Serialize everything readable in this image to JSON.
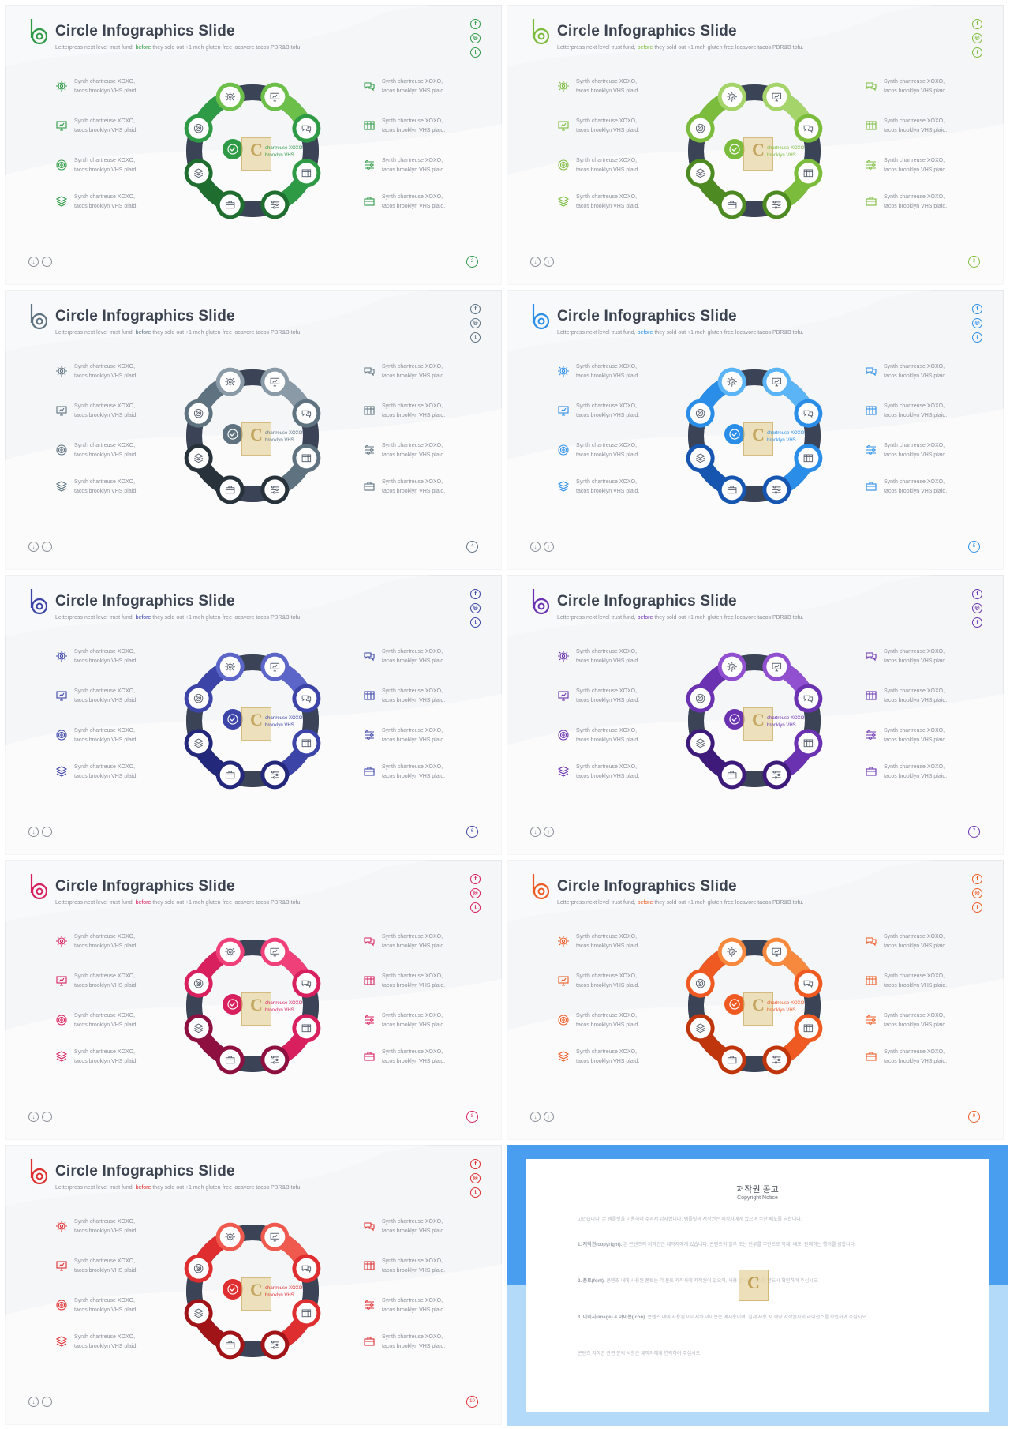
{
  "slide": {
    "title": "Circle Infographics Slide",
    "subtitle_pre": "Letterpress next level trust fund, ",
    "subtitle_hl": "before",
    "subtitle_post": " they sold out +1 meh gluten-free locavore tacos PBR&B tofu.",
    "item_text": "Synth chartreuse XOXO,\ntacos brooklyn VHS plaid.",
    "watermark_letter": "C",
    "watermark_text": "chartreuse XOXO\nbrooklyn VHS",
    "social": [
      "f",
      "◎",
      "t"
    ],
    "nav": [
      "↓",
      "↑"
    ],
    "left_icons": [
      "gear-icon",
      "presentation-icon",
      "target-icon",
      "layers-icon"
    ],
    "right_icons": [
      "chat-bubbles-icon",
      "table-icon",
      "sliders-icon",
      "briefcase-icon"
    ]
  },
  "slides": [
    {
      "page": "2",
      "accent": "#2f9a45",
      "light": "#6cc04a",
      "dark": "#1f6e30"
    },
    {
      "page": "3",
      "accent": "#7cbc3c",
      "light": "#a5d46a",
      "dark": "#4e8a22"
    },
    {
      "page": "4",
      "accent": "#5e7280",
      "light": "#8a9aa6",
      "dark": "#27323a"
    },
    {
      "page": "5",
      "accent": "#2a8ee8",
      "light": "#5ab4f5",
      "dark": "#1656b0"
    },
    {
      "page": "6",
      "accent": "#3c44a8",
      "light": "#5c66c8",
      "dark": "#24287a"
    },
    {
      "page": "7",
      "accent": "#6a32b0",
      "light": "#9050d0",
      "dark": "#3e1a7a"
    },
    {
      "page": "8",
      "accent": "#d8205e",
      "light": "#f0407a",
      "dark": "#8e1040"
    },
    {
      "page": "9",
      "accent": "#ee5a22",
      "light": "#f7893e",
      "dark": "#c0360c"
    },
    {
      "page": "10",
      "accent": "#de2e30",
      "light": "#f05a4e",
      "dark": "#a01418"
    }
  ],
  "copyright": {
    "title": "저작권 공고",
    "subtitle": "Copyright Notice",
    "intro": "고맙습니다. 본 템플릿을 이용하여 주셔서 감사합니다. 템플릿의 저작권은 제작자에게 있으며 무단 배포를 금합니다.",
    "p1_head": "1. 저작권(copyright). ",
    "p1_body": "본 콘텐츠의 저작권은 제작자에게 있습니다. 콘텐츠의 일부 또는 전부를 무단으로 복제, 배포, 판매하는 행위를 금합니다.",
    "p2_head": "2. 폰트(font). ",
    "p2_body": "콘텐츠 내에 사용된 폰트는 각 폰트 제작사에 저작권이 있으며, 사용 전 라이선스를 반드시 확인하여 주십시오.",
    "p3_head": "3. 이미지(image) & 아이콘(icon). ",
    "p3_body": "콘텐츠 내에 사용된 이미지와 아이콘은 예시용이며, 실제 사용 시 해당 저작권자의 라이선스를 확인하여 주십시오.",
    "outro": "콘텐츠 저작권 관련 문의 사항은 제작자에게 연락하여 주십시오."
  }
}
